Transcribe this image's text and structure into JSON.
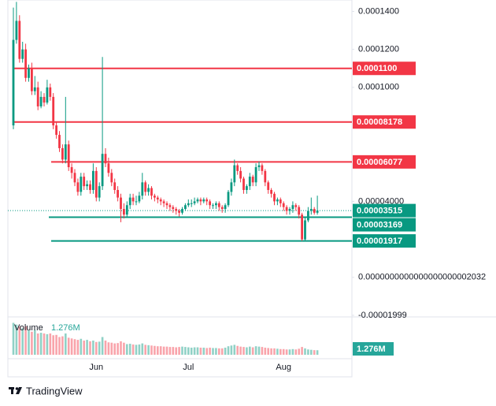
{
  "chart_data": {
    "type": "candlestick",
    "brand": "TradingView",
    "categories": [
      null,
      null,
      null,
      null,
      null,
      null,
      null,
      null,
      null,
      null,
      null,
      null,
      null,
      null,
      null,
      null,
      null,
      null,
      null,
      null,
      null,
      null,
      null,
      null,
      null,
      null,
      null,
      "Jun",
      null,
      null,
      null,
      null,
      null,
      null,
      null,
      null,
      null,
      null,
      null,
      null,
      null,
      null,
      null,
      null,
      null,
      null,
      null,
      null,
      null,
      null,
      null,
      null,
      null,
      null,
      null,
      null,
      null,
      "Jul",
      null,
      null,
      null,
      null,
      null,
      null,
      null,
      null,
      null,
      null,
      null,
      null,
      null,
      null,
      null,
      null,
      null,
      null,
      null,
      null,
      null,
      null,
      null,
      null,
      null,
      null,
      null,
      null,
      null,
      null,
      "Aug",
      null,
      null,
      null,
      null,
      null,
      null,
      null,
      null,
      null,
      null,
      null
    ],
    "open": [
      8e-05,
      0.000125,
      0.000135,
      0.000115,
      0.00012,
      0.000105,
      0.00011,
      9.8e-05,
      0.0001,
      9e-05,
      9.5e-05,
      9.2e-05,
      0.0001,
      9.5e-05,
      8e-05,
      7.5e-05,
      6.8e-05,
      6.2e-05,
      7e-05,
      5.8e-05,
      5.5e-05,
      5e-05,
      4.5e-05,
      5.3e-05,
      4.8e-05,
      4.9e-05,
      4.6e-05,
      5.6e-05,
      4.2e-05,
      4.8e-05,
      6.5e-05,
      6e-05,
      5.5e-05,
      5e-05,
      4.6e-05,
      4.2e-05,
      3.6e-05,
      3.3e-05,
      3.8e-05,
      4.2e-05,
      4e-05,
      4e-05,
      4.3e-05,
      5e-05,
      4.5e-05,
      4.7e-05,
      4.3e-05,
      4.2e-05,
      4.1e-05,
      4e-05,
      3.9e-05,
      3.8e-05,
      3.7e-05,
      3.6e-05,
      3.5e-05,
      3.4e-05,
      3.6e-05,
      3.8e-05,
      3.9e-05,
      3.9e-05,
      4e-05,
      4.1e-05,
      4e-05,
      4.1e-05,
      4e-05,
      3.8e-05,
      3.8e-05,
      3.9e-05,
      3.7e-05,
      3.6e-05,
      3.8e-05,
      4.5e-05,
      5e-05,
      5.9e-05,
      5.6e-05,
      5.2e-05,
      4.6e-05,
      4.8e-05,
      5.3e-05,
      5e-05,
      5.8e-05,
      5.9e-05,
      5.6e-05,
      5e-05,
      4.6e-05,
      4.4e-05,
      4e-05,
      4.1e-05,
      3.9e-05,
      3.7e-05,
      3.5e-05,
      3.6e-05,
      3.8e-05,
      3.7e-05,
      3.3e-05,
      2e-05,
      3e-05,
      3.5e-05,
      3.6e-05,
      3.4e-05
    ],
    "high": [
      0.000142,
      0.000145,
      0.000138,
      0.000124,
      0.000123,
      0.000112,
      0.000113,
      0.000106,
      0.000103,
      9.8e-05,
      9.7e-05,
      0.000104,
      0.000102,
      9.7e-05,
      8.2e-05,
      7.7e-05,
      7e-05,
      9.5e-05,
      7.2e-05,
      6e-05,
      5.7e-05,
      5.2e-05,
      5.5e-05,
      5.5e-05,
      5.1e-05,
      5.1e-05,
      6e-05,
      5.8e-05,
      5e-05,
      0.000116,
      6.8e-05,
      6.3e-05,
      5.7e-05,
      5.2e-05,
      4.8e-05,
      4.4e-05,
      3.9e-05,
      4e-05,
      4.4e-05,
      4.4e-05,
      4.3e-05,
      4.5e-05,
      5.5e-05,
      5.1e-05,
      4.9e-05,
      4.8e-05,
      4.4e-05,
      4.3e-05,
      4.2e-05,
      4.1e-05,
      4e-05,
      3.9e-05,
      3.8e-05,
      3.7e-05,
      3.6e-05,
      3.7e-05,
      3.9e-05,
      4.1e-05,
      4.1e-05,
      4.2e-05,
      4.2e-05,
      4.2e-05,
      4.2e-05,
      4.2e-05,
      4.1e-05,
      3.9e-05,
      4e-05,
      4e-05,
      3.8e-05,
      3.9e-05,
      4.6e-05,
      5.2e-05,
      6.2e-05,
      6e-05,
      5.8e-05,
      5.3e-05,
      4.9e-05,
      5.5e-05,
      5.4e-05,
      6e-05,
      6.1e-05,
      6e-05,
      5.7e-05,
      5.1e-05,
      4.7e-05,
      4.5e-05,
      4.2e-05,
      4.2e-05,
      4e-05,
      3.8e-05,
      3.7e-05,
      4e-05,
      3.9e-05,
      3.8e-05,
      3.4e-05,
      3.2e-05,
      3.7e-05,
      4.2e-05,
      3.7e-05,
      4.3e-05
    ],
    "low": [
      7.8e-05,
      0.000123,
      0.000113,
      0.000113,
      0.000103,
      0.000103,
      9.6e-05,
      9.6e-05,
      8.8e-05,
      8.9e-05,
      9e-05,
      9.1e-05,
      9.3e-05,
      7.8e-05,
      7.3e-05,
      6.6e-05,
      6e-05,
      6e-05,
      5.6e-05,
      5.2e-05,
      4.8e-05,
      4.3e-05,
      4.3e-05,
      4.6e-05,
      4.6e-05,
      4.4e-05,
      4.4e-05,
      4e-05,
      4e-05,
      4.6e-05,
      5.8e-05,
      5.3e-05,
      4.8e-05,
      4.4e-05,
      4e-05,
      2.9e-05,
      3.1e-05,
      3.2e-05,
      3.6e-05,
      3.8e-05,
      3.8e-05,
      3.9e-05,
      4.1e-05,
      4.3e-05,
      4.3e-05,
      4.1e-05,
      4e-05,
      3.9e-05,
      3.8e-05,
      3.7e-05,
      3.6e-05,
      3.5e-05,
      3.4e-05,
      3.3e-05,
      3.2e-05,
      3.3e-05,
      3.5e-05,
      3.7e-05,
      3.7e-05,
      3.8e-05,
      3.9e-05,
      3.8e-05,
      3.9e-05,
      3.8e-05,
      3.6e-05,
      3.6e-05,
      3.6e-05,
      3.5e-05,
      3.4e-05,
      3.4e-05,
      3.7e-05,
      4.3e-05,
      4.8e-05,
      5.4e-05,
      5e-05,
      4.4e-05,
      4.4e-05,
      4.6e-05,
      4.8e-05,
      4.8e-05,
      5.6e-05,
      5.4e-05,
      4.8e-05,
      4.4e-05,
      4.2e-05,
      3.8e-05,
      3.8e-05,
      3.7e-05,
      3.5e-05,
      3.3e-05,
      3.3e-05,
      3.4e-05,
      3.5e-05,
      3.1e-05,
      1.917e-05,
      1.95e-05,
      2.9e-05,
      3.3e-05,
      3.3e-05,
      3.3e-05
    ],
    "close": [
      0.000125,
      0.000135,
      0.000115,
      0.00012,
      0.000105,
      0.00011,
      9.8e-05,
      0.0001,
      9e-05,
      9.5e-05,
      9.2e-05,
      0.0001,
      9.5e-05,
      8e-05,
      7.5e-05,
      6.8e-05,
      6.2e-05,
      7e-05,
      5.8e-05,
      5.5e-05,
      5e-05,
      4.5e-05,
      5.3e-05,
      4.8e-05,
      4.9e-05,
      4.6e-05,
      5.6e-05,
      4.2e-05,
      4.8e-05,
      6.5e-05,
      6e-05,
      5.5e-05,
      5e-05,
      4.6e-05,
      4.2e-05,
      3.6e-05,
      3.3e-05,
      3.8e-05,
      4.2e-05,
      4e-05,
      4e-05,
      4.3e-05,
      5e-05,
      4.5e-05,
      4.7e-05,
      4.3e-05,
      4.2e-05,
      4.1e-05,
      4e-05,
      3.9e-05,
      3.8e-05,
      3.7e-05,
      3.6e-05,
      3.5e-05,
      3.4e-05,
      3.6e-05,
      3.8e-05,
      3.9e-05,
      3.9e-05,
      4e-05,
      4.1e-05,
      4e-05,
      4.1e-05,
      4e-05,
      3.8e-05,
      3.8e-05,
      3.9e-05,
      3.7e-05,
      3.6e-05,
      3.8e-05,
      4.5e-05,
      5e-05,
      5.9e-05,
      5.6e-05,
      5.2e-05,
      4.6e-05,
      4.8e-05,
      5.3e-05,
      5e-05,
      5.8e-05,
      5.9e-05,
      5.6e-05,
      5e-05,
      4.6e-05,
      4.4e-05,
      4e-05,
      4.1e-05,
      3.9e-05,
      3.7e-05,
      3.5e-05,
      3.6e-05,
      3.8e-05,
      3.7e-05,
      3.3e-05,
      2e-05,
      3e-05,
      3.5e-05,
      3.6e-05,
      3.4e-05,
      3.515e-05
    ],
    "up_color": "#089981",
    "down_color": "#f23645",
    "ylim": [
      -2e-05,
      0.000146
    ],
    "yticks": [
      {
        "value": -1.999e-05,
        "label": "-0.00001999"
      },
      {
        "value": 2.032e-21,
        "label": "0.0000000000000000000002032"
      },
      {
        "value": 4e-05,
        "label": "0.00004000"
      },
      {
        "value": 0.0001,
        "label": "0.0001000"
      },
      {
        "value": 0.00012,
        "label": "0.0001200"
      },
      {
        "value": 0.00014,
        "label": "0.0001400"
      }
    ],
    "levels": [
      {
        "value": 0.00011,
        "label": "0.0001100",
        "color": "#f23645"
      },
      {
        "value": 8.178e-05,
        "label": "0.00008178",
        "color": "#f23645"
      },
      {
        "value": 6.077e-05,
        "label": "0.00006077",
        "color": "#f23645"
      },
      {
        "value": 3.169e-05,
        "label": "0.00003169",
        "color": "#089981"
      },
      {
        "value": 1.917e-05,
        "label": "0.00001917",
        "color": "#089981"
      }
    ],
    "last_price": {
      "value": 3.515e-05,
      "label": "0.00003515",
      "color": "#089981"
    },
    "volume": {
      "name": "Volume",
      "last_label": "1.276M",
      "ylim": [
        0,
        10000000
      ],
      "values": [
        9000000.0,
        8500000.0,
        8000000.0,
        7500000.0,
        8000000.0,
        7000000.0,
        6500000.0,
        7000000.0,
        6000000.0,
        6200000.0,
        6000000.0,
        5800000.0,
        6000000.0,
        5500000.0,
        5600000.0,
        5000000.0,
        5200000.0,
        6000000.0,
        4800000.0,
        4600000.0,
        4400000.0,
        4200000.0,
        4500000.0,
        4000000.0,
        4200000.0,
        3800000.0,
        4000000.0,
        3600000.0,
        3700000.0,
        5000000.0,
        4000000.0,
        3500000.0,
        3400000.0,
        3200000.0,
        3300000.0,
        3800000.0,
        3400000.0,
        3000000.0,
        3100000.0,
        2900000.0,
        2800000.0,
        2900000.0,
        3200000.0,
        2800000.0,
        2700000.0,
        2600000.0,
        2500000.0,
        2400000.0,
        2400000.0,
        2300000.0,
        2300000.0,
        2200000.0,
        2200000.0,
        2100000.0,
        2200000.0,
        2300000.0,
        2200000.0,
        2100000.0,
        2000000.0,
        2100000.0,
        2100000.0,
        2000000.0,
        2000000.0,
        1900000.0,
        2000000.0,
        1900000.0,
        1900000.0,
        1800000.0,
        1800000.0,
        2000000.0,
        2400000.0,
        2600000.0,
        2800000.0,
        2500000.0,
        2300000.0,
        2200000.0,
        2100000.0,
        2300000.0,
        2100000.0,
        2400000.0,
        2300000.0,
        2200000.0,
        2000000.0,
        1900000.0,
        1800000.0,
        1800000.0,
        1700000.0,
        1600000.0,
        1600000.0,
        1500000.0,
        1500000.0,
        1600000.0,
        1500000.0,
        1700000.0,
        2200000.0,
        1800000.0,
        1500000.0,
        1400000.0,
        1300000.0,
        1276000.0
      ]
    }
  }
}
